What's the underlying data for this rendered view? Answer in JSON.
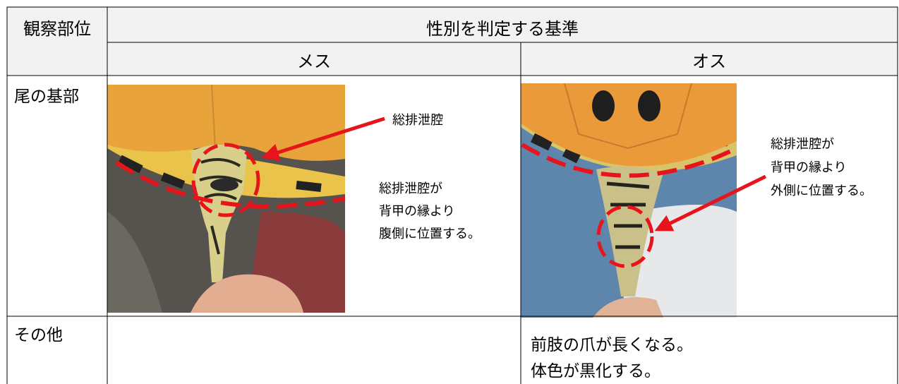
{
  "table": {
    "header": {
      "observation_part": "観察部位",
      "criteria": "性別を判定する基準",
      "female": "メス",
      "male": "オス"
    },
    "rows": [
      {
        "label": "尾の基部",
        "female": {
          "pointer": "総排泄腔",
          "description": [
            "総排泄腔が",
            "背甲の縁より",
            "腹側に位置する。"
          ]
        },
        "male": {
          "description": [
            "総排泄腔が",
            "背甲の縁より",
            "外側に位置する。"
          ]
        }
      },
      {
        "label": "その他",
        "male": {
          "description": [
            "前肢の爪が長くなる。",
            "体色が黒化する。"
          ]
        }
      }
    ]
  }
}
